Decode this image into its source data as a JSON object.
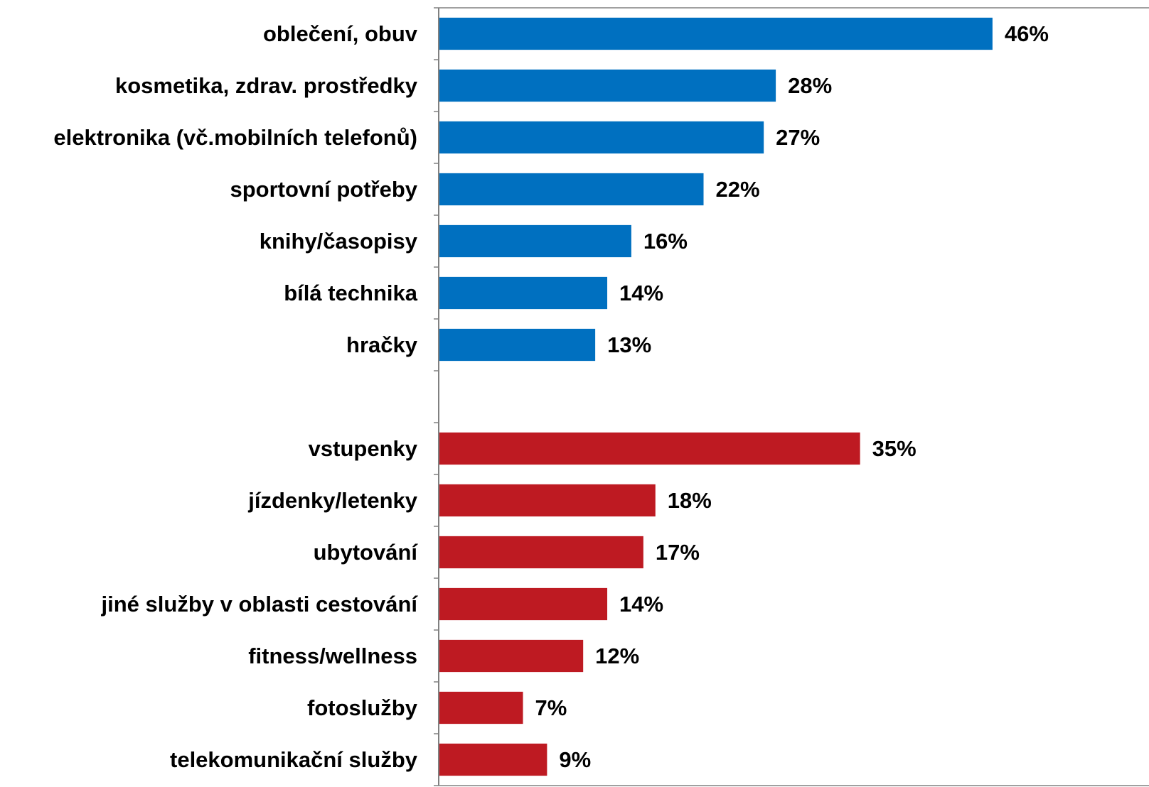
{
  "chart_data": {
    "type": "bar",
    "orientation": "horizontal",
    "categories": [
      "oblečení, obuv",
      "kosmetika, zdrav. prostředky",
      "elektronika (vč.mobilních telefonů)",
      "sportovní potřeby",
      "knihy/časopisy",
      "bílá technika",
      "hračky",
      "",
      "vstupenky",
      "jízdenky/letenky",
      "ubytování",
      "jiné služby v oblasti cestování",
      "fitness/wellness",
      "fotoslužby",
      "telekomunikační služby"
    ],
    "values": [
      46,
      28,
      27,
      22,
      16,
      14,
      13,
      null,
      35,
      18,
      17,
      14,
      12,
      7,
      9
    ],
    "value_labels": [
      "46%",
      "28%",
      "27%",
      "22%",
      "16%",
      "14%",
      "13%",
      "",
      "35%",
      "18%",
      "17%",
      "14%",
      "12%",
      "7%",
      "9%"
    ],
    "groups": [
      0,
      0,
      0,
      0,
      0,
      0,
      0,
      null,
      1,
      1,
      1,
      1,
      1,
      1,
      1
    ],
    "group_colors": [
      "#0070c0",
      "#be1a22"
    ],
    "unit": "%",
    "xlim": [
      0,
      59
    ],
    "grid": false,
    "legend": "none",
    "title": "",
    "xlabel": "",
    "ylabel": ""
  }
}
